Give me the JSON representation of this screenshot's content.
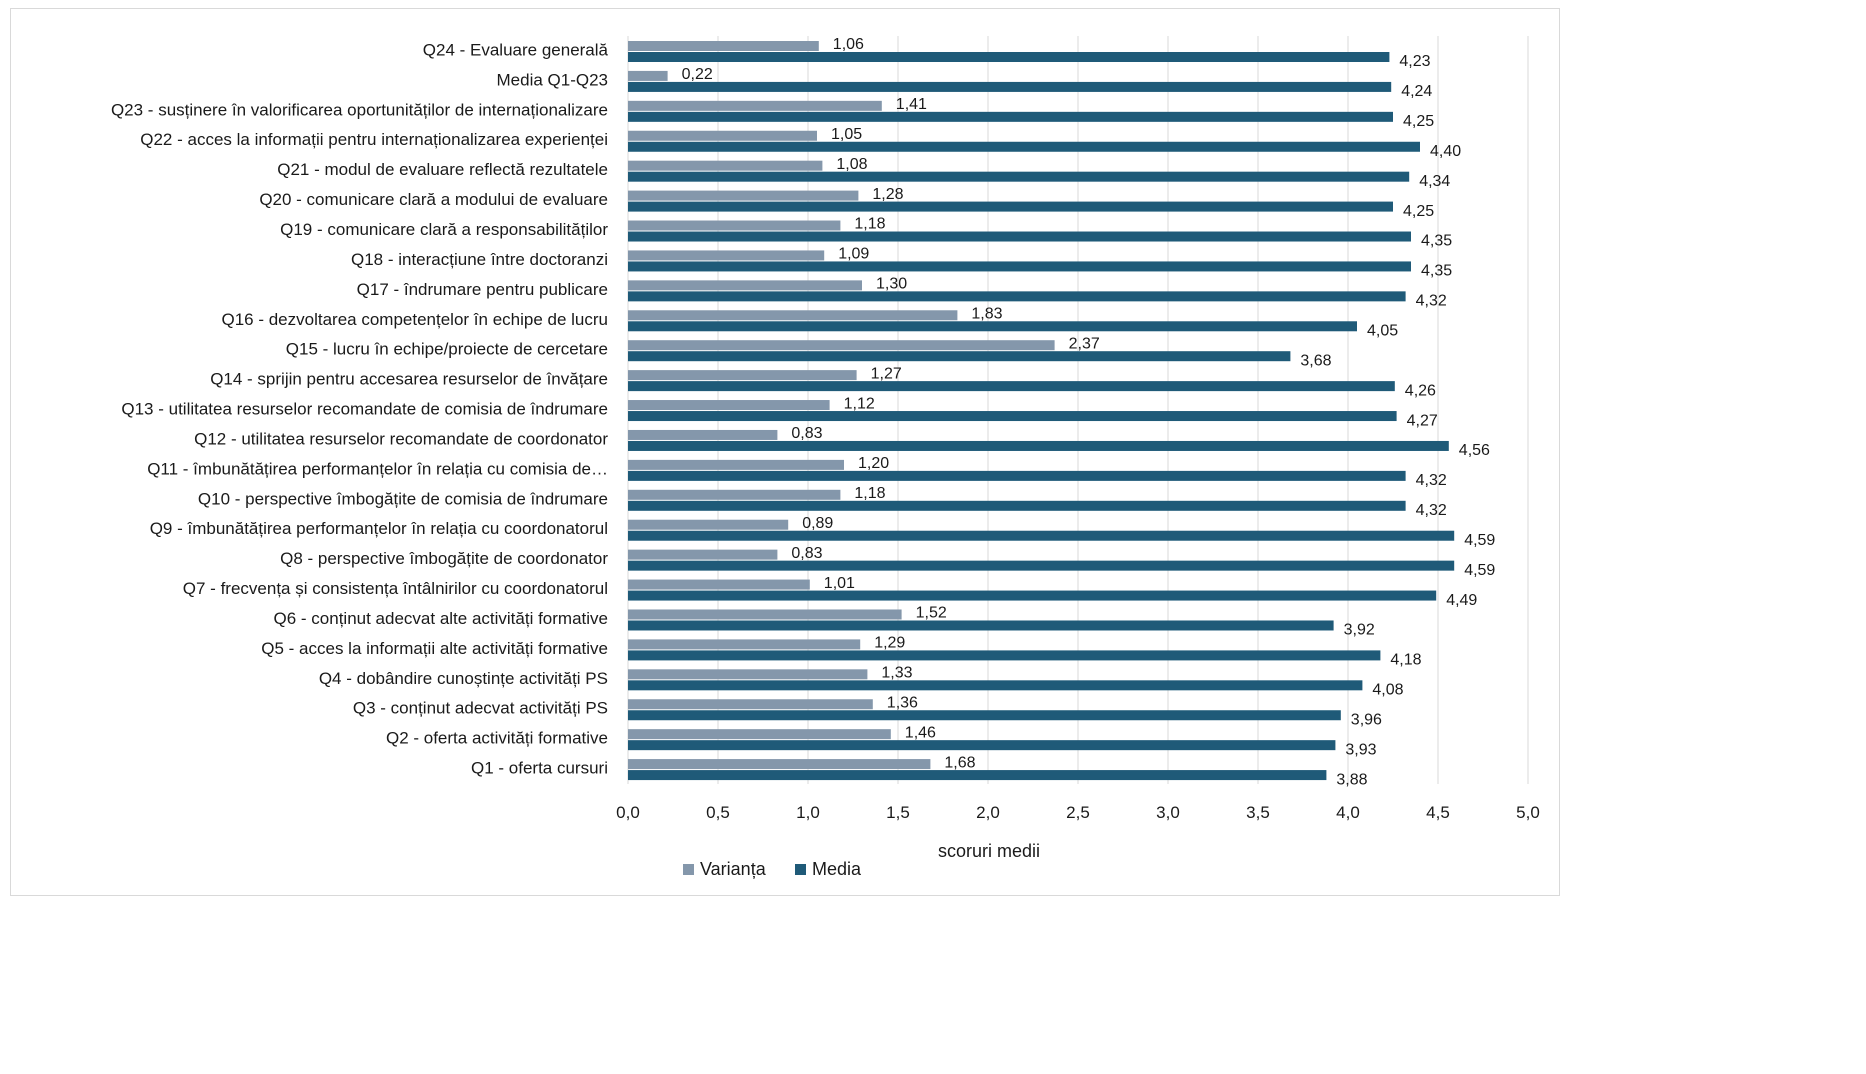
{
  "chart_data": {
    "type": "bar",
    "orientation": "horizontal",
    "categories": [
      "Q24 - Evaluare generală",
      "Media Q1-Q23",
      "Q23 - susținere în valorificarea oportunităților de internaționalizare",
      "Q22 - acces la informații pentru internaționalizarea experienței",
      "Q21 - modul de evaluare reflectă rezultatele",
      "Q20 - comunicare clară a modului de evaluare",
      "Q19 - comunicare clară a responsabilităților",
      "Q18 - interacțiune între doctoranzi",
      "Q17 - îndrumare pentru publicare",
      "Q16 - dezvoltarea competențelor în echipe de lucru",
      "Q15 - lucru în echipe/proiecte de cercetare",
      "Q14 - sprijin pentru accesarea resurselor de învățare",
      "Q13 - utilitatea resurselor recomandate de comisia de îndrumare",
      "Q12 - utilitatea resurselor recomandate de coordonator",
      "Q11 - îmbunătățirea performanțelor în relația cu comisia de…",
      "Q10 - perspective îmbogățite de comisia de îndrumare",
      "Q9 - îmbunătățirea performanțelor în relația cu coordonatorul",
      "Q8 - perspective îmbogățite de coordonator",
      "Q7 - frecvența și consistența întâlnirilor cu coordonatorul",
      "Q6 - conținut adecvat alte activități formative",
      "Q5 - acces la informații alte activități formative",
      "Q4 - dobândire cunoștințe activități PS",
      "Q3 - conținut adecvat activități PS",
      "Q2 - oferta activități formative",
      "Q1 - oferta cursuri"
    ],
    "series": [
      {
        "name": "Varianța",
        "color": "#8497ab",
        "values": [
          1.06,
          0.22,
          1.41,
          1.05,
          1.08,
          1.28,
          1.18,
          1.09,
          1.3,
          1.83,
          2.37,
          1.27,
          1.12,
          0.83,
          1.2,
          1.18,
          0.89,
          0.83,
          1.01,
          1.52,
          1.29,
          1.33,
          1.36,
          1.46,
          1.68
        ],
        "labels": [
          "1,06",
          "0,22",
          "1,41",
          "1,05",
          "1,08",
          "1,28",
          "1,18",
          "1,09",
          "1,30",
          "1,83",
          "2,37",
          "1,27",
          "1,12",
          "0,83",
          "1,20",
          "1,18",
          "0,89",
          "0,83",
          "1,01",
          "1,52",
          "1,29",
          "1,33",
          "1,36",
          "1,46",
          "1,68"
        ]
      },
      {
        "name": "Media",
        "color": "#1f5a78",
        "values": [
          4.23,
          4.24,
          4.25,
          4.4,
          4.34,
          4.25,
          4.35,
          4.35,
          4.32,
          4.05,
          3.68,
          4.26,
          4.27,
          4.56,
          4.32,
          4.32,
          4.59,
          4.59,
          4.49,
          3.92,
          4.18,
          4.08,
          3.96,
          3.93,
          3.88
        ],
        "labels": [
          "4,23",
          "4,24",
          "4,25",
          "4,40",
          "4,34",
          "4,25",
          "4,35",
          "4,35",
          "4,32",
          "4,05",
          "3,68",
          "4,26",
          "4,27",
          "4,56",
          "4,32",
          "4,32",
          "4,59",
          "4,59",
          "4,49",
          "3,92",
          "4,18",
          "4,08",
          "3,96",
          "3,93",
          "3,88"
        ]
      }
    ],
    "xlabel": "scoruri medii",
    "xlim": [
      0,
      5
    ],
    "xticks": [
      0,
      0.5,
      1,
      1.5,
      2,
      2.5,
      3,
      3.5,
      4,
      4.5,
      5
    ],
    "xtick_labels": [
      "0,0",
      "0,5",
      "1,0",
      "1,5",
      "2,0",
      "2,5",
      "3,0",
      "3,5",
      "4,0",
      "4,5",
      "5,0"
    ],
    "grid": "vertical",
    "grid_color": "#d9d9d9",
    "legend_position": "bottom"
  }
}
